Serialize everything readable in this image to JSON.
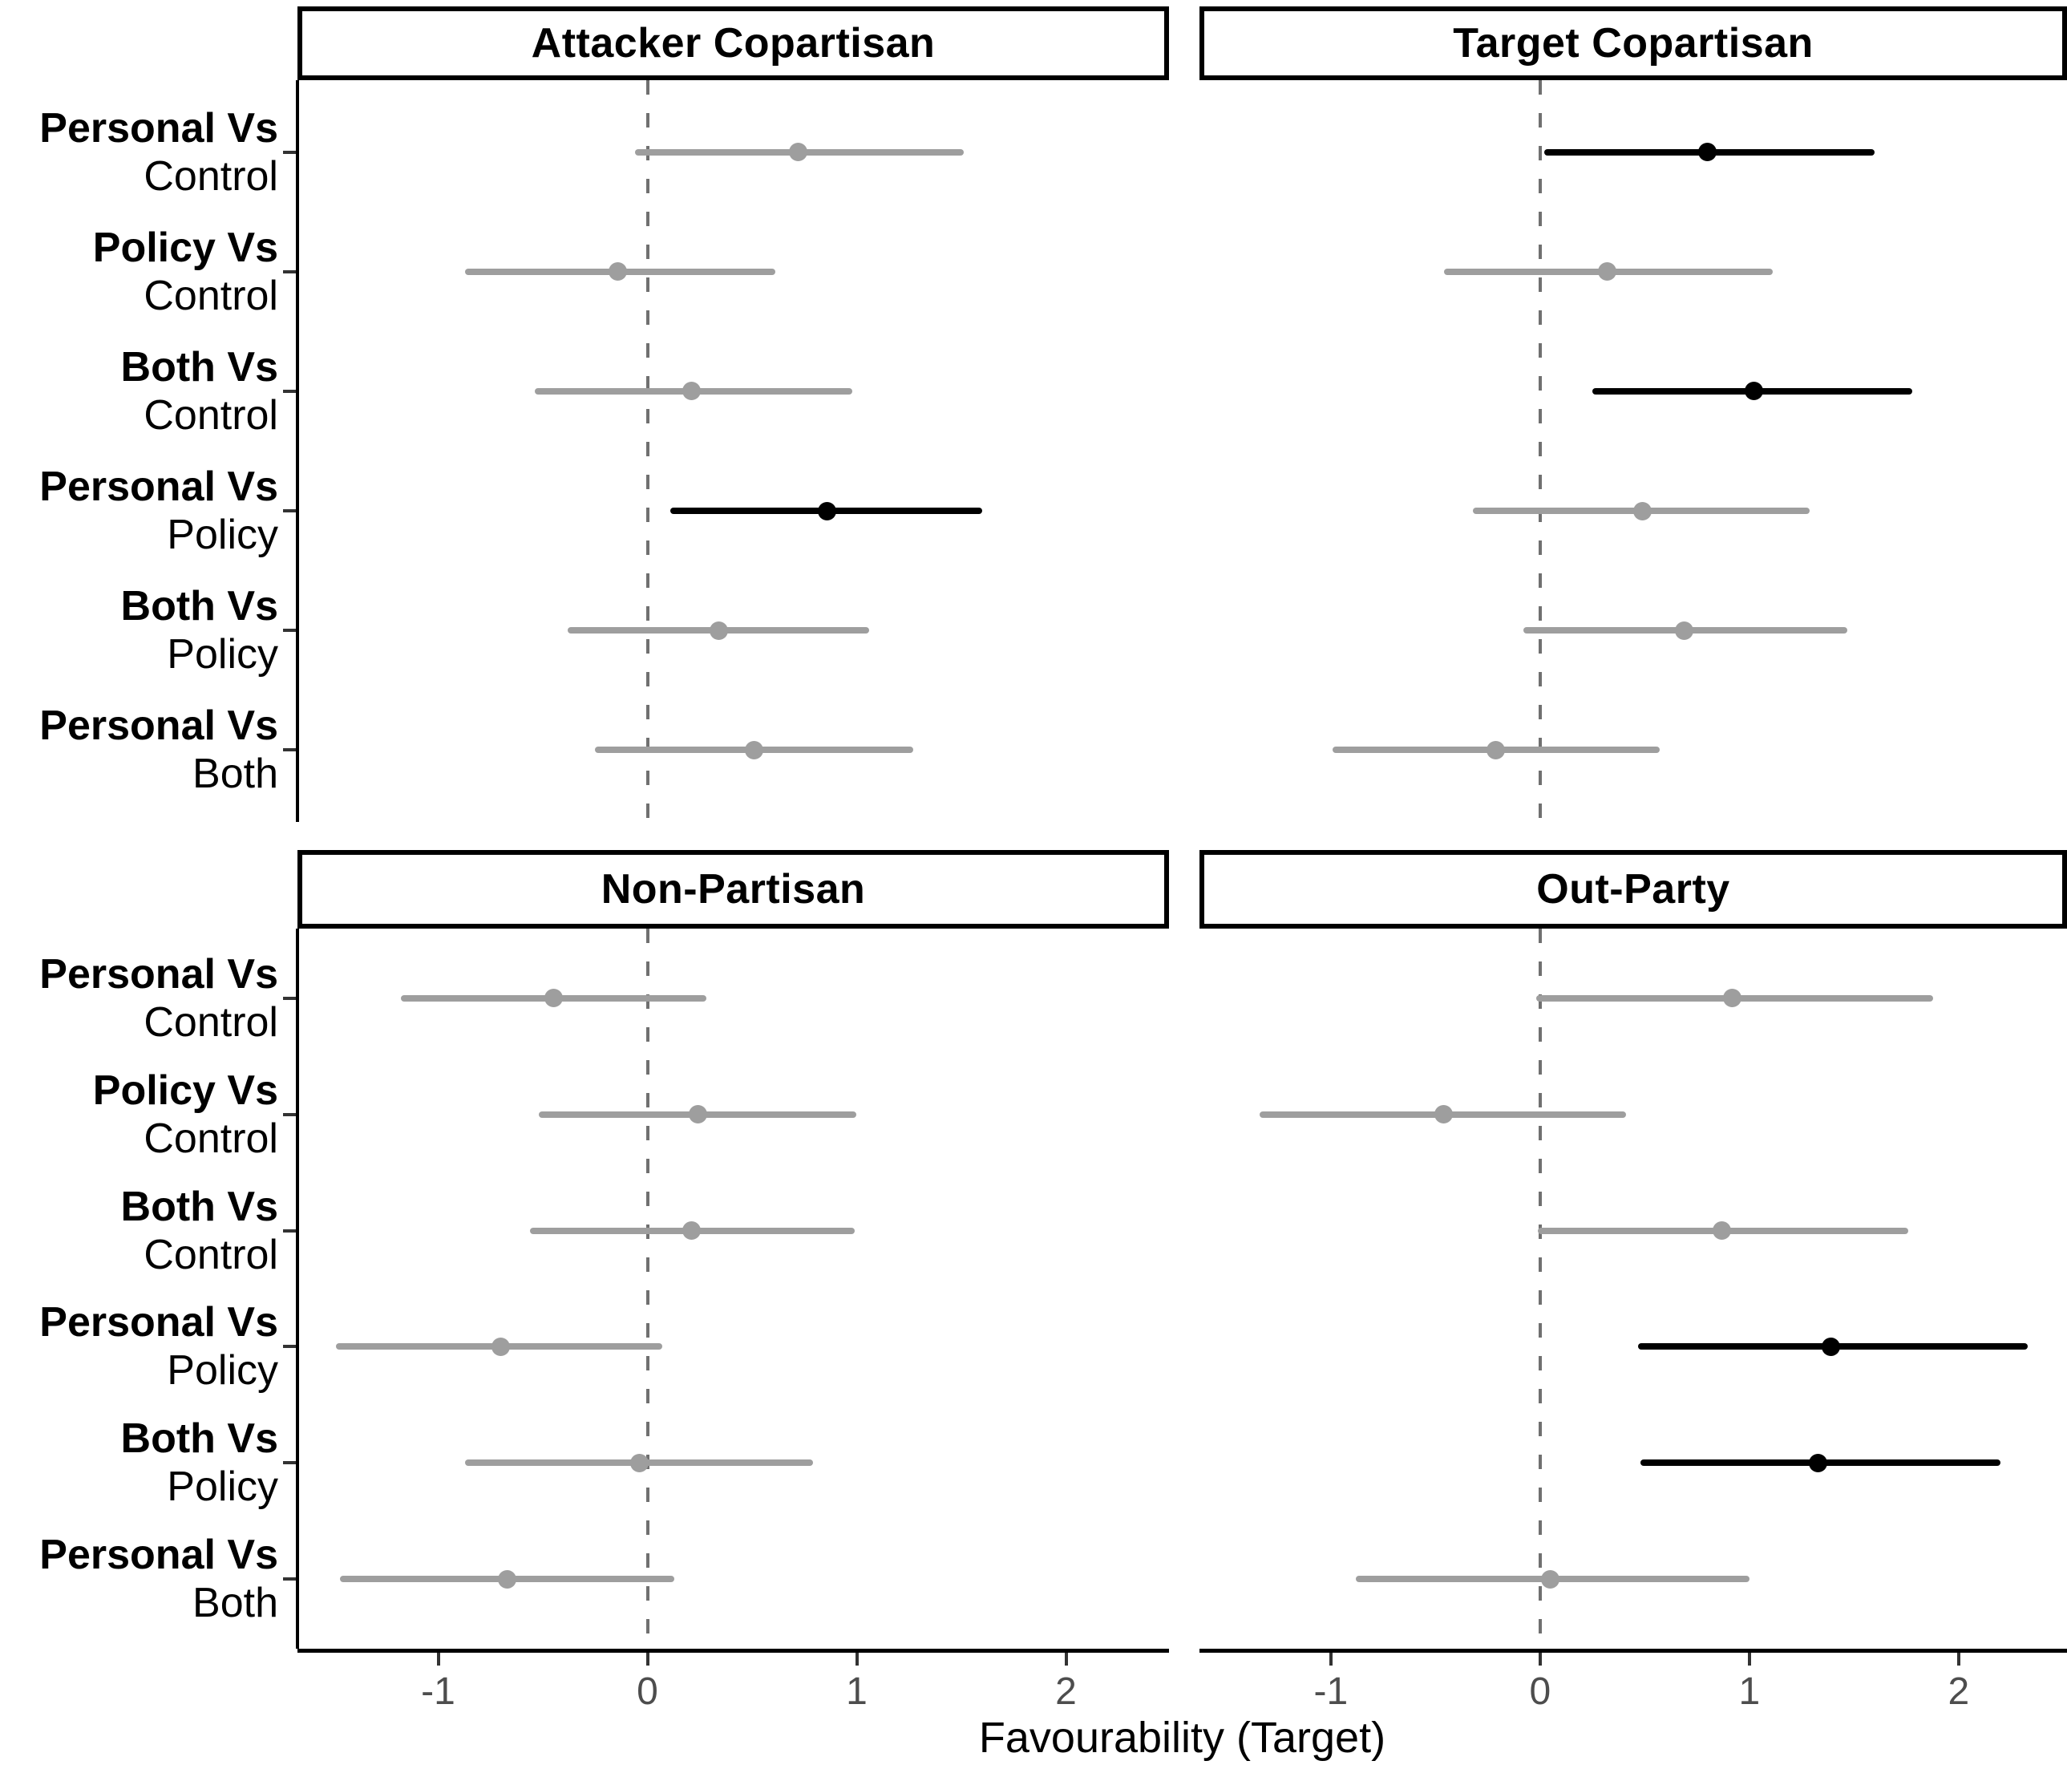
{
  "figure": {
    "kind": "faceted forest plot of treatment contrasts with 95% confidence intervals"
  },
  "chart_data": {
    "type": "scatter",
    "subtype": "forest-plot-horizontal-ci",
    "title": "",
    "xlabel": "Favourability (Target)",
    "categories": [
      {
        "line1": "Personal Vs",
        "line2": "Control"
      },
      {
        "line1": "Policy Vs",
        "line2": "Control"
      },
      {
        "line1": "Both Vs",
        "line2": "Control"
      },
      {
        "line1": "Personal Vs",
        "line2": "Policy"
      },
      {
        "line1": "Both Vs",
        "line2": "Policy"
      },
      {
        "line1": "Personal Vs",
        "line2": "Both"
      }
    ],
    "x_axis": {
      "label": "Favourability (Target)",
      "ticks": [
        -1,
        0,
        1,
        2
      ],
      "tick_labels": [
        "-1",
        "0",
        "1",
        "2"
      ],
      "range": [
        -1.67,
        2.52
      ],
      "zero_reference_line": 0,
      "zero_line_style": "dashed",
      "grid": false
    },
    "legend": {
      "shown": false
    },
    "colors": {
      "significant": "#000000",
      "nonsignificant": "#9e9e9e",
      "zero_line": "#707070",
      "axis_text": "#4d4d4d",
      "axis_line": "#000000",
      "strip_border": "#000000",
      "strip_background": "#ffffff"
    },
    "facets": [
      {
        "title": "Attacker Copartisan",
        "position": "top-left",
        "points": [
          {
            "label": "Personal Vs Control",
            "estimate": 0.72,
            "ci_low": -0.06,
            "ci_high": 1.51,
            "significant": false
          },
          {
            "label": "Policy Vs Control",
            "estimate": -0.14,
            "ci_low": -0.87,
            "ci_high": 0.61,
            "significant": false
          },
          {
            "label": "Both Vs Control",
            "estimate": 0.21,
            "ci_low": -0.54,
            "ci_high": 0.98,
            "significant": false
          },
          {
            "label": "Personal Vs Policy",
            "estimate": 0.86,
            "ci_low": 0.11,
            "ci_high": 1.6,
            "significant": true
          },
          {
            "label": "Both Vs Policy",
            "estimate": 0.34,
            "ci_low": -0.38,
            "ci_high": 1.06,
            "significant": false
          },
          {
            "label": "Personal Vs Both",
            "estimate": 0.51,
            "ci_low": -0.25,
            "ci_high": 1.27,
            "significant": false
          }
        ]
      },
      {
        "title": "Target Copartisan",
        "position": "top-right",
        "points": [
          {
            "label": "Personal Vs Control",
            "estimate": 0.8,
            "ci_low": 0.02,
            "ci_high": 1.6,
            "significant": true
          },
          {
            "label": "Policy Vs Control",
            "estimate": 0.32,
            "ci_low": -0.46,
            "ci_high": 1.11,
            "significant": false
          },
          {
            "label": "Both Vs Control",
            "estimate": 1.02,
            "ci_low": 0.25,
            "ci_high": 1.78,
            "significant": true
          },
          {
            "label": "Personal Vs Policy",
            "estimate": 0.49,
            "ci_low": -0.32,
            "ci_high": 1.29,
            "significant": false
          },
          {
            "label": "Both Vs Policy",
            "estimate": 0.69,
            "ci_low": -0.08,
            "ci_high": 1.47,
            "significant": false
          },
          {
            "label": "Personal Vs Both",
            "estimate": -0.21,
            "ci_low": -0.99,
            "ci_high": 0.57,
            "significant": false
          }
        ]
      },
      {
        "title": "Non-Partisan",
        "position": "bottom-left",
        "points": [
          {
            "label": "Personal Vs Control",
            "estimate": -0.45,
            "ci_low": -1.18,
            "ci_high": 0.28,
            "significant": false
          },
          {
            "label": "Policy Vs Control",
            "estimate": 0.24,
            "ci_low": -0.52,
            "ci_high": 1.0,
            "significant": false
          },
          {
            "label": "Both Vs Control",
            "estimate": 0.21,
            "ci_low": -0.56,
            "ci_high": 0.99,
            "significant": false
          },
          {
            "label": "Personal Vs Policy",
            "estimate": -0.7,
            "ci_low": -1.49,
            "ci_high": 0.07,
            "significant": false
          },
          {
            "label": "Both Vs Policy",
            "estimate": -0.04,
            "ci_low": -0.87,
            "ci_high": 0.79,
            "significant": false
          },
          {
            "label": "Personal Vs Both",
            "estimate": -0.67,
            "ci_low": -1.47,
            "ci_high": 0.13,
            "significant": false
          }
        ]
      },
      {
        "title": "Out-Party",
        "position": "bottom-right",
        "points": [
          {
            "label": "Personal Vs Control",
            "estimate": 0.92,
            "ci_low": -0.02,
            "ci_high": 1.88,
            "significant": false
          },
          {
            "label": "Policy Vs Control",
            "estimate": -0.46,
            "ci_low": -1.34,
            "ci_high": 0.41,
            "significant": false
          },
          {
            "label": "Both Vs Control",
            "estimate": 0.87,
            "ci_low": -0.01,
            "ci_high": 1.76,
            "significant": false
          },
          {
            "label": "Personal Vs Policy",
            "estimate": 1.39,
            "ci_low": 0.47,
            "ci_high": 2.33,
            "significant": true
          },
          {
            "label": "Both Vs Policy",
            "estimate": 1.33,
            "ci_low": 0.48,
            "ci_high": 2.2,
            "significant": true
          },
          {
            "label": "Personal Vs Both",
            "estimate": 0.05,
            "ci_low": -0.88,
            "ci_high": 1.0,
            "significant": false
          }
        ]
      }
    ]
  }
}
